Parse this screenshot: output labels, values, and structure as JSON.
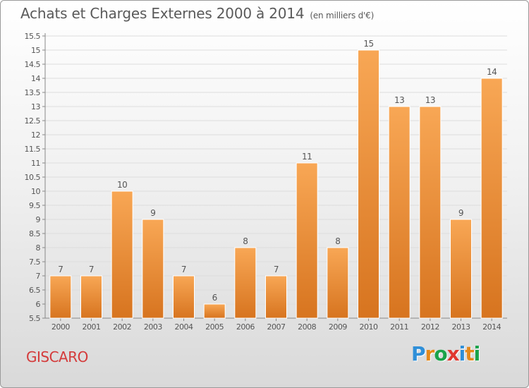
{
  "header": {
    "title": "Achats et Charges Externes 2000 à 2014",
    "unit": "(en milliers d'€)"
  },
  "footer": {
    "commune": "GISCARO",
    "logo_text": "Proxiti"
  },
  "colors": {
    "bar_top": "#f8a755",
    "bar_bottom": "#d7741f",
    "logo": [
      "#2f8fd8",
      "#e5891a",
      "#1aa34a",
      "#e0372e",
      "#2f8fd8",
      "#e5891a",
      "#1aa34a"
    ]
  },
  "chart_data": {
    "type": "bar",
    "categories": [
      "2000",
      "2001",
      "2002",
      "2003",
      "2004",
      "2005",
      "2006",
      "2007",
      "2008",
      "2009",
      "2010",
      "2011",
      "2012",
      "2013",
      "2014"
    ],
    "values": [
      7,
      7,
      10,
      9,
      7,
      6,
      8,
      7,
      11,
      8,
      15,
      13,
      13,
      9,
      14
    ],
    "ylim": [
      5.5,
      15.5
    ],
    "yticks": [
      "5.5",
      "6",
      "6.5",
      "7",
      "7.5",
      "8",
      "8.5",
      "9",
      "9.5",
      "10",
      "10.5",
      "11",
      "11.5",
      "12",
      "12.5",
      "13",
      "13.5",
      "14",
      "14.5",
      "15",
      "15.5"
    ],
    "grid": "horizontal"
  }
}
